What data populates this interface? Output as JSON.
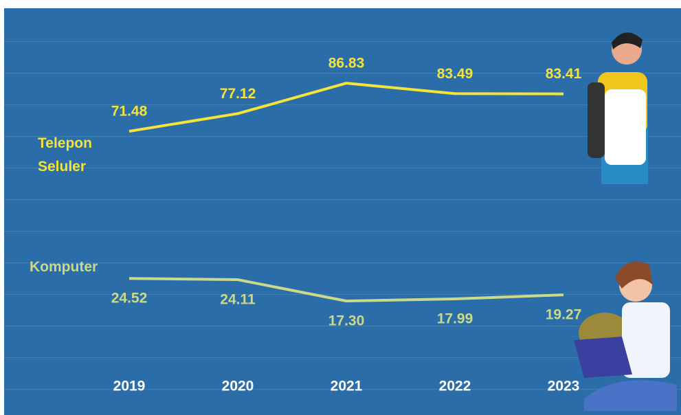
{
  "chart_data": {
    "type": "line",
    "categories": [
      "2019",
      "2020",
      "2021",
      "2022",
      "2023"
    ],
    "ylim": [
      0,
      100
    ],
    "series": [
      {
        "name": "Telepon Seluler",
        "color": "#f4e43a",
        "values": [
          71.48,
          77.12,
          86.83,
          83.49,
          83.41
        ]
      },
      {
        "name": "Komputer",
        "color": "#cbd98a",
        "values": [
          24.52,
          24.11,
          17.3,
          17.99,
          19.27
        ],
        "value_labels": [
          "24.52",
          "24.11",
          "17.30",
          "17.99",
          "19.27"
        ]
      }
    ]
  }
}
